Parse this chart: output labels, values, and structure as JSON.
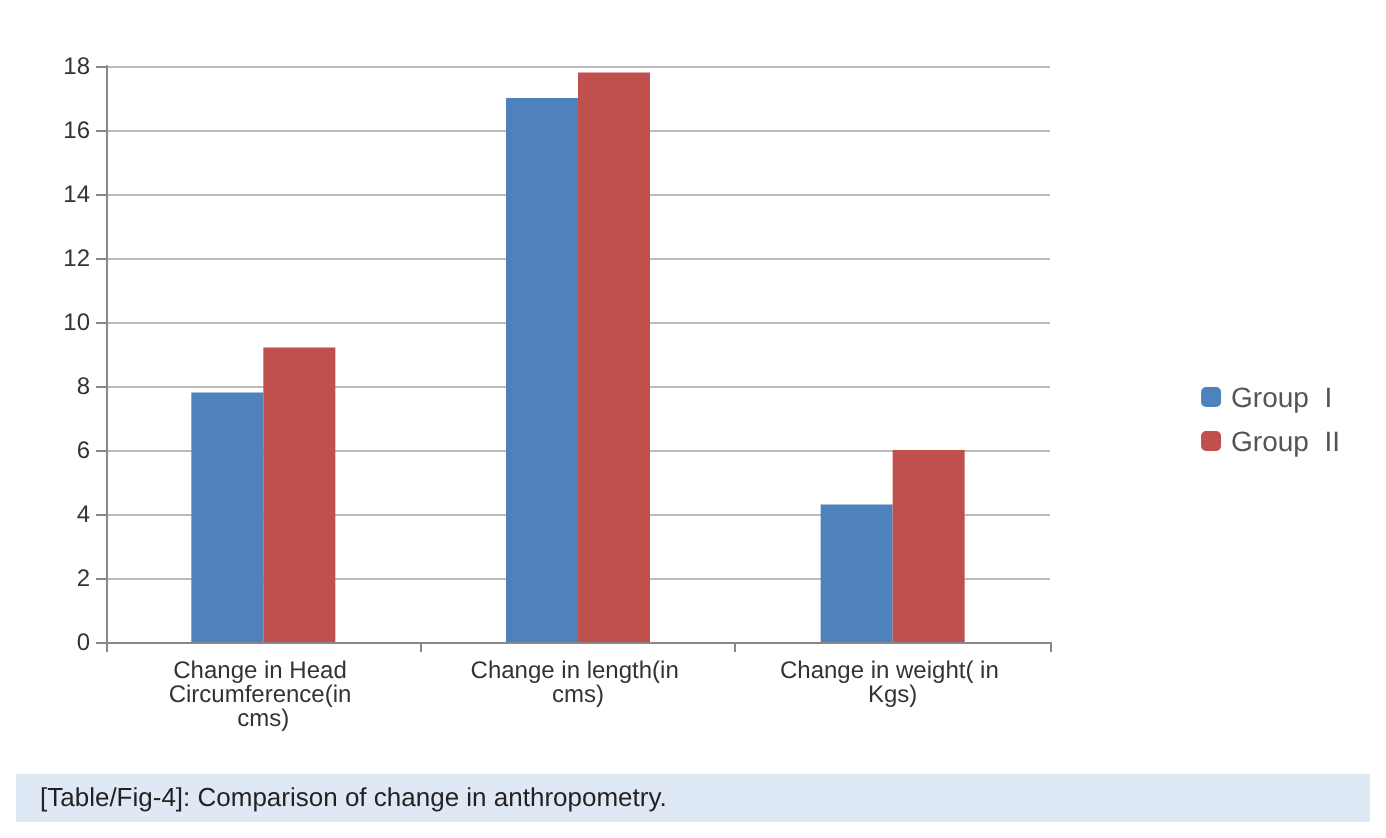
{
  "chart_data": {
    "type": "bar",
    "categories": [
      "Change in Head Circumference(in cms)",
      "Change in length(in cms)",
      "Change in weight( in Kgs)"
    ],
    "series": [
      {
        "name": "Group  I",
        "color": "#4f81bd",
        "values": [
          7.8,
          17.0,
          4.3
        ]
      },
      {
        "name": "Group  II",
        "color": "#c0504d",
        "values": [
          9.2,
          17.8,
          6.0
        ]
      }
    ],
    "ylim": [
      0,
      18
    ],
    "yticks": [
      0,
      2,
      4,
      6,
      8,
      10,
      12,
      14,
      16,
      18
    ],
    "grid": "y",
    "legend": "right",
    "annotations": [
      "[Table/Fig-4]: Comparison of change in anthropometry."
    ]
  }
}
